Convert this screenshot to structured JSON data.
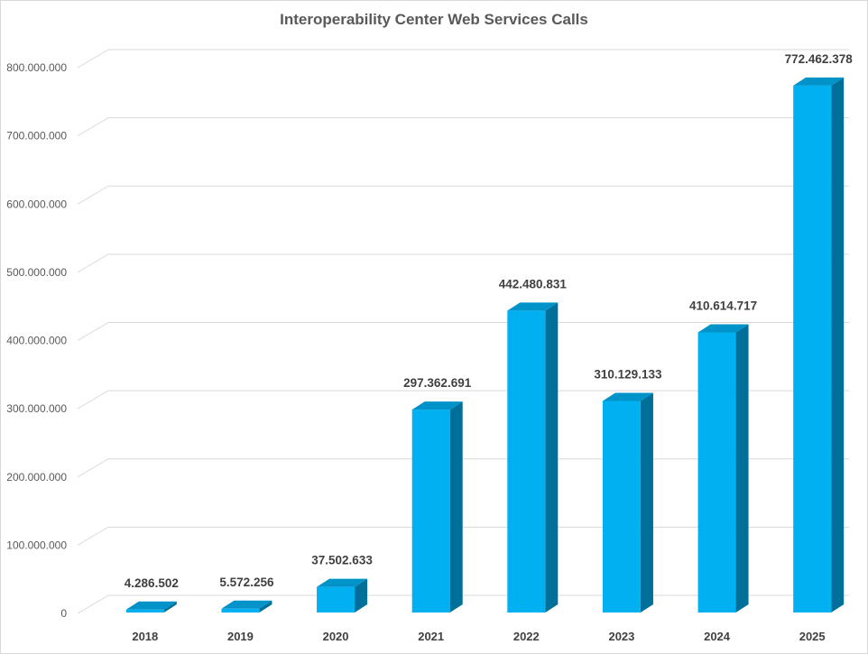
{
  "chart_data": {
    "type": "bar",
    "title": "Interoperability Center Web Services Calls",
    "xlabel": "",
    "ylabel": "",
    "categories": [
      "2018",
      "2019",
      "2020",
      "2021",
      "2022",
      "2023",
      "2024",
      "2025"
    ],
    "values": [
      4286502,
      5572256,
      37502633,
      297362691,
      442480831,
      310129133,
      410614717,
      772462378
    ],
    "data_labels": [
      "4.286.502",
      "5.572.256",
      "37.502.633",
      "297.362.691",
      "442.480.831",
      "310.129.133",
      "410.614.717",
      "772.462.378"
    ],
    "ylim": [
      0,
      800000000
    ],
    "yticks": [
      0,
      100000000,
      200000000,
      300000000,
      400000000,
      500000000,
      600000000,
      700000000,
      800000000
    ],
    "ytick_labels": [
      "0",
      "100.000.000",
      "200.000.000",
      "300.000.000",
      "400.000.000",
      "500.000.000",
      "600.000.000",
      "700.000.000",
      "800.000.000"
    ],
    "grid": true,
    "style": "3d-column",
    "colors": {
      "front": "#00b0f0",
      "top": "#0093c9",
      "side": "#006f99",
      "grid": "#d9d9d9",
      "text": "#595959"
    }
  }
}
